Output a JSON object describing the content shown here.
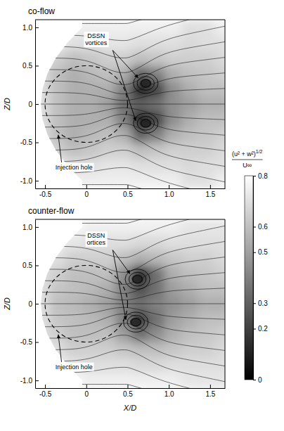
{
  "chart_data": [
    {
      "type": "heatmap",
      "title": "co-flow",
      "ylabel": "Z/D",
      "xlim": [
        -0.62,
        1.68
      ],
      "ylim": [
        -1.1,
        1.1
      ],
      "xticks": [
        -0.5,
        0,
        0.5,
        {
          "value": 1,
          "label": "1.0"
        },
        1.5
      ],
      "yticks": [
        {
          "value": -1,
          "label": "-1.0"
        },
        -0.5,
        0,
        0.5,
        {
          "value": 1,
          "label": "1.0"
        }
      ],
      "x": [
        -0.55,
        -0.35,
        -0.15,
        0.05,
        0.25,
        0.45,
        0.65,
        0.85,
        1.05,
        1.25,
        1.45,
        1.65
      ],
      "z": [
        -1.0,
        -0.8,
        -0.6,
        -0.4,
        -0.2,
        0,
        0.2,
        0.4,
        0.6,
        0.8,
        1.0
      ],
      "cells": [
        [
          0.8,
          0.8,
          0.75,
          0.75,
          0.75,
          0.75,
          0.75,
          0.75,
          0.75,
          0.7,
          0.7,
          0.75
        ],
        [
          0.8,
          0.75,
          0.7,
          0.7,
          0.72,
          0.72,
          0.7,
          0.7,
          0.7,
          0.68,
          0.7,
          0.7
        ],
        [
          0.75,
          0.65,
          0.6,
          0.62,
          0.65,
          0.65,
          0.6,
          0.62,
          0.65,
          0.65,
          0.65,
          0.68
        ],
        [
          0.7,
          0.6,
          0.55,
          0.58,
          0.6,
          0.55,
          0.3,
          0.4,
          0.55,
          0.6,
          0.62,
          0.65
        ],
        [
          0.7,
          0.6,
          0.55,
          0.55,
          0.55,
          0.4,
          0.1,
          0.2,
          0.45,
          0.55,
          0.6,
          0.6
        ],
        [
          0.7,
          0.6,
          0.55,
          0.55,
          0.5,
          0.35,
          0.3,
          0.35,
          0.45,
          0.5,
          0.55,
          0.55
        ],
        [
          0.7,
          0.6,
          0.55,
          0.55,
          0.55,
          0.4,
          0.1,
          0.2,
          0.45,
          0.55,
          0.6,
          0.6
        ],
        [
          0.7,
          0.6,
          0.55,
          0.58,
          0.6,
          0.55,
          0.3,
          0.4,
          0.55,
          0.6,
          0.62,
          0.65
        ],
        [
          0.75,
          0.65,
          0.6,
          0.62,
          0.65,
          0.65,
          0.6,
          0.62,
          0.65,
          0.65,
          0.65,
          0.68
        ],
        [
          0.8,
          0.75,
          0.7,
          0.7,
          0.72,
          0.72,
          0.7,
          0.7,
          0.7,
          0.68,
          0.7,
          0.7
        ],
        [
          0.8,
          0.8,
          0.75,
          0.75,
          0.75,
          0.75,
          0.75,
          0.75,
          0.75,
          0.7,
          0.7,
          0.75
        ]
      ],
      "data_edge": {
        "x": [
          -0.05,
          -0.23,
          -0.37,
          -0.47,
          -0.53,
          -0.55,
          -0.53,
          -0.47,
          -0.37,
          -0.23,
          -0.05
        ],
        "z": [
          -1.0,
          -0.8,
          -0.6,
          -0.4,
          -0.2,
          0,
          0.2,
          0.4,
          0.6,
          0.8,
          1.0
        ]
      },
      "vortices": {
        "x": [
          0.72,
          0.72
        ],
        "z": [
          0.27,
          -0.25
        ]
      },
      "hole": {
        "x": 0,
        "z": 0,
        "diameter": 1
      },
      "annotations": [
        "DSSN vortices",
        "Injection hole"
      ]
    },
    {
      "type": "heatmap",
      "title": "counter-flow",
      "xlabel": "X/D",
      "ylabel": "Z/D",
      "xlim": [
        -0.62,
        1.68
      ],
      "ylim": [
        -1.1,
        1.1
      ],
      "xticks": [
        -0.5,
        0,
        0.5,
        {
          "value": 1,
          "label": "1.0"
        },
        1.5
      ],
      "yticks": [
        {
          "value": -1,
          "label": "-1.0"
        },
        -0.5,
        0,
        0.5,
        {
          "value": 1,
          "label": "1.0"
        }
      ],
      "x": [
        -0.55,
        -0.35,
        -0.15,
        0.05,
        0.25,
        0.45,
        0.65,
        0.85,
        1.05,
        1.25,
        1.45,
        1.65
      ],
      "z": [
        -1.0,
        -0.8,
        -0.6,
        -0.4,
        -0.2,
        0,
        0.2,
        0.4,
        0.6,
        0.8,
        1.0
      ],
      "cells": [
        [
          0.8,
          0.8,
          0.78,
          0.75,
          0.75,
          0.75,
          0.75,
          0.75,
          0.75,
          0.72,
          0.72,
          0.72
        ],
        [
          0.8,
          0.75,
          0.72,
          0.7,
          0.7,
          0.7,
          0.68,
          0.68,
          0.7,
          0.7,
          0.7,
          0.7
        ],
        [
          0.75,
          0.7,
          0.65,
          0.65,
          0.65,
          0.62,
          0.6,
          0.6,
          0.62,
          0.65,
          0.65,
          0.68
        ],
        [
          0.7,
          0.65,
          0.6,
          0.6,
          0.6,
          0.5,
          0.35,
          0.45,
          0.55,
          0.6,
          0.62,
          0.65
        ],
        [
          0.7,
          0.62,
          0.6,
          0.58,
          0.55,
          0.4,
          0.2,
          0.35,
          0.5,
          0.55,
          0.6,
          0.6
        ],
        [
          0.7,
          0.6,
          0.58,
          0.55,
          0.5,
          0.4,
          0.35,
          0.4,
          0.45,
          0.5,
          0.55,
          0.55
        ],
        [
          0.7,
          0.62,
          0.6,
          0.58,
          0.55,
          0.4,
          0.25,
          0.35,
          0.5,
          0.55,
          0.6,
          0.6
        ],
        [
          0.7,
          0.65,
          0.6,
          0.6,
          0.6,
          0.45,
          0.1,
          0.35,
          0.55,
          0.6,
          0.62,
          0.65
        ],
        [
          0.75,
          0.7,
          0.65,
          0.65,
          0.65,
          0.6,
          0.55,
          0.58,
          0.62,
          0.65,
          0.65,
          0.68
        ],
        [
          0.8,
          0.75,
          0.72,
          0.7,
          0.7,
          0.7,
          0.68,
          0.68,
          0.7,
          0.7,
          0.7,
          0.7
        ],
        [
          0.8,
          0.8,
          0.78,
          0.75,
          0.75,
          0.75,
          0.75,
          0.75,
          0.75,
          0.72,
          0.72,
          0.72
        ]
      ],
      "data_edge": {
        "x": [
          -0.05,
          -0.23,
          -0.37,
          -0.47,
          -0.53,
          -0.55,
          -0.53,
          -0.47,
          -0.37,
          -0.23,
          -0.05
        ],
        "z": [
          -1.0,
          -0.8,
          -0.6,
          -0.4,
          -0.2,
          0,
          0.2,
          0.4,
          0.6,
          0.8,
          1.0
        ]
      },
      "vortices": {
        "x": [
          0.62,
          0.6
        ],
        "z": [
          0.32,
          -0.24
        ]
      },
      "hole": {
        "x": 0,
        "z": 0,
        "diameter": 1
      },
      "annotations": [
        "DSSN ortices",
        "Injection hole"
      ],
      "colorbar": {
        "numerator": "(u² + w²)",
        "exponent": "1/2",
        "denominator": "U∞",
        "range": [
          0,
          0.8
        ],
        "ticks": [
          0,
          0.2,
          0.3,
          0.5,
          0.6,
          0.8
        ]
      }
    }
  ]
}
